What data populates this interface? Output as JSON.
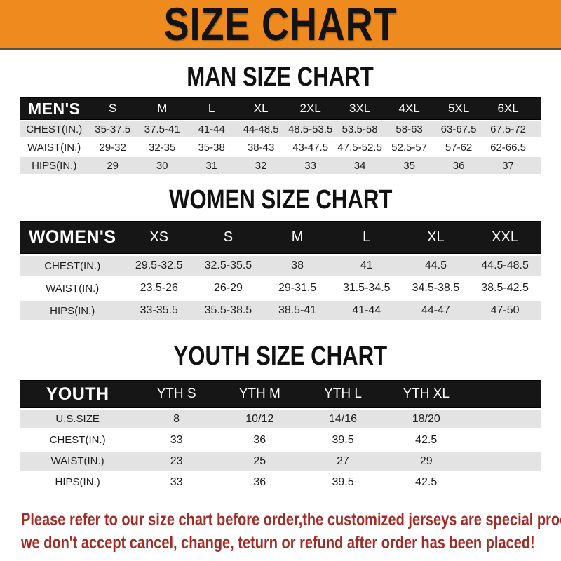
{
  "banner": {
    "title": "SIZE CHART"
  },
  "colors": {
    "banner_orange": "#EE8A1E",
    "header_bar_black": "#161616",
    "striped_row_gray": "#e3e3e3",
    "notice_red": "#A32B26"
  },
  "sections": [
    {
      "heading": "MAN SIZE CHART",
      "table": {
        "header_label": "MEN'S",
        "columns": [
          "S",
          "M",
          "L",
          "XL",
          "2XL",
          "3XL",
          "4XL",
          "5XL",
          "6XL"
        ],
        "rows": [
          {
            "label": "CHEST(IN.)",
            "values": [
              "35-37.5",
              "37.5-41",
              "41-44",
              "44-48.5",
              "48.5-53.5",
              "53.5-58",
              "58-63",
              "63-67.5",
              "67.5-72"
            ]
          },
          {
            "label": "WAIST(IN.)",
            "values": [
              "29-32",
              "32-35",
              "35-38",
              "38-43",
              "43-47.5",
              "47.5-52.5",
              "52.5-57",
              "57-62",
              "62-66.5"
            ]
          },
          {
            "label": "HIPS(IN.)",
            "values": [
              "29",
              "30",
              "31",
              "32",
              "33",
              "34",
              "35",
              "36",
              "37"
            ]
          }
        ]
      }
    },
    {
      "heading": "WOMEN SIZE CHART",
      "table": {
        "header_label": "WOMEN'S",
        "columns": [
          "XS",
          "S",
          "M",
          "L",
          "XL",
          "XXL"
        ],
        "rows": [
          {
            "label": "CHEST(IN.)",
            "values": [
              "29.5-32.5",
              "32.5-35.5",
              "38",
              "41",
              "44.5",
              "44.5-48.5"
            ]
          },
          {
            "label": "WAIST(IN.)",
            "values": [
              "23.5-26",
              "26-29",
              "29-31.5",
              "31.5-34.5",
              "34.5-38.5",
              "38.5-42.5"
            ]
          },
          {
            "label": "HIPS(IN.)",
            "values": [
              "33-35.5",
              "35.5-38.5",
              "38.5-41",
              "41-44",
              "44-47",
              "47-50"
            ]
          }
        ]
      }
    },
    {
      "heading": "YOUTH SIZE CHART",
      "table": {
        "header_label": "YOUTH",
        "columns": [
          "YTH S",
          "YTH M",
          "YTH L",
          "YTH XL"
        ],
        "rows": [
          {
            "label": "U.S.SIZE",
            "values": [
              "8",
              "10/12",
              "14/16",
              "18/20"
            ]
          },
          {
            "label": "CHEST(IN.)",
            "values": [
              "33",
              "36",
              "39.5",
              "42.5"
            ]
          },
          {
            "label": "WAIST(IN.)",
            "values": [
              "23",
              "25",
              "27",
              "29"
            ]
          },
          {
            "label": "HIPS(IN.)",
            "values": [
              "33",
              "36",
              "39.5",
              "42.5"
            ]
          }
        ]
      }
    }
  ],
  "footer": {
    "line1": "Please refer to our size chart before order,the customized jerseys are special products,",
    "line2": "we don't accept cancel, change, teturn or refund after order has been placed!"
  }
}
